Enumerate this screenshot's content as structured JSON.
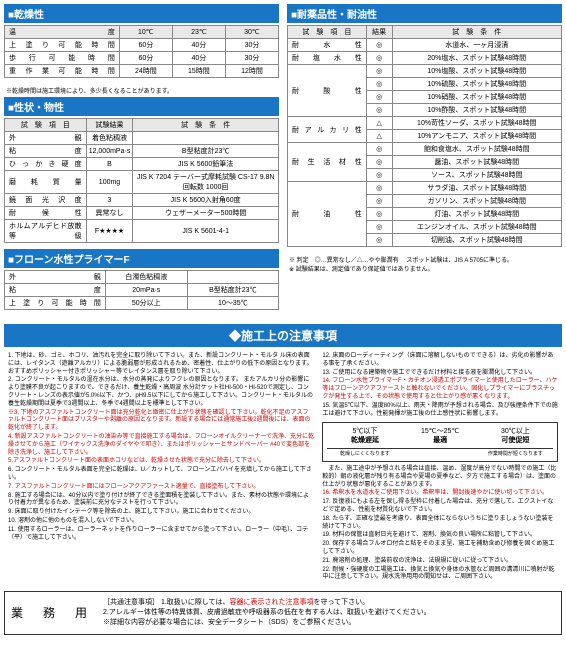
{
  "sections": {
    "drying": {
      "title": "■乾燥性",
      "headers": [
        "温　　　　度",
        "10℃",
        "23℃",
        "30℃"
      ],
      "rows": [
        [
          "上塗り可能時間",
          "60分",
          "40分",
          "30分"
        ],
        [
          "歩行可能時間",
          "60分",
          "40分",
          "30分"
        ],
        [
          "重作業可能時間",
          "24時間",
          "15時間",
          "12時間"
        ]
      ],
      "note": "※乾燥時間は施工環境により、多少長くなることがあります。"
    },
    "properties": {
      "title": "■性状・物性",
      "headers": [
        "試　験　項　目",
        "試験結果",
        "試　験　条　件"
      ],
      "rows": [
        [
          "外　　　　　観",
          "着色粘稠液",
          ""
        ],
        [
          "粘　　　　　度",
          "12,000mPa·s",
          "B型粘度計23℃"
        ],
        [
          "ひっかき硬度",
          "B",
          "JIS K 5600鉛筆法"
        ],
        [
          "磨　耗　質　量",
          "100mg",
          "JIS K 7204 テーバー式摩耗試験 CS-17 9.8N 回転数 1000回"
        ],
        [
          "鏡面光沢度",
          "3",
          "JIS K 5600入射角60度"
        ],
        [
          "耐　候　性",
          "異常なし",
          "ウェザーメーター500時間"
        ],
        [
          "ホルムアルデヒド放散等級",
          "F★★★★",
          "JIS K 5601-4-1"
        ]
      ]
    },
    "primer": {
      "title": "■フローン水性プライマーF",
      "rows": [
        [
          "外　　　　　観",
          "白濁色粘稠液",
          ""
        ],
        [
          "粘　　　　　度",
          "20mPa·s",
          "B型粘度計23℃"
        ],
        [
          "上塗り可能時間",
          "50分以上",
          "10～35℃"
        ]
      ]
    },
    "resistance": {
      "title": "■耐薬品性・耐油性",
      "headers": [
        "試　験　項　目",
        "結果",
        "試　験　条　件"
      ],
      "groups": [
        {
          "label": "耐　水　性",
          "rows": [
            [
              "◎",
              "水道水、一ヶ月浸漬"
            ]
          ]
        },
        {
          "label": "耐　塩　水　性",
          "rows": [
            [
              "◎",
              "20%塩水、スポット試験48時間"
            ]
          ]
        },
        {
          "label": "耐　酸　性",
          "rows": [
            [
              "◎",
              "10%塩酸、スポット試験48時間"
            ],
            [
              "◎",
              "10%硫酸、スポット試験48時間"
            ],
            [
              "◎",
              "10%硝酸、スポット試験48時間"
            ],
            [
              "◎",
              "10%酢酸、スポット試験48時間"
            ]
          ]
        },
        {
          "label": "耐アルカリ性",
          "rows": [
            [
              "△",
              "10%苛性ソーダ、スポット試験48時間"
            ],
            [
              "△",
              "10%アンモニア、スポット試験48時間"
            ]
          ]
        },
        {
          "label": "耐生活材性",
          "rows": [
            [
              "◎",
              "飽和食塩水、スポット試験48時間"
            ],
            [
              "◎",
              "醤油、スポット試験48時間"
            ],
            [
              "◎",
              "ソース、スポット試験48時間"
            ]
          ]
        },
        {
          "label": "耐　油　性",
          "rows": [
            [
              "◎",
              "サラダ油、スポット試験48時間"
            ],
            [
              "◎",
              "ガソリン、スポット試験48時間"
            ],
            [
              "◎",
              "灯油、スポット試験48時間"
            ],
            [
              "◎",
              "エンジンオイル、スポット試験48時間"
            ],
            [
              "◎",
              "切削油、スポット試験48時間"
            ]
          ]
        }
      ],
      "note": "※ 判定　◎…異常なし／△…やや膨潤有　 スポット試験は、JIS A 5705に準じる。\n※ 試験結果は、測定値であり保証値ではありません。"
    }
  },
  "notice": {
    "title": "◆施工上の注意事項",
    "left_items": [
      "1. 下地は、砂、ゴミ、ホコリ、油汚れを完全に取り除いて下さい。また、新設コンクリート・モルタ ル床の表面には、レイタンス（遊離アルカリ）による脆弱層が形成されるため、密着性、仕上がりの低下の原因となります。おすすめポリッシャー付きポリッシャー等でレイタンス層を取り除いて下さい。",
      "2. コンクリート・モルタルの湿在水分は、水分の蒸発によりフクレの原因となります。 またアルカリ分の影響により塗膜不良が起こりますので、できるだけ、養生乾燥・高周波 水分計ケット社HI-500・HI-520で測定し、コンクリート・レンズの表示値が5.0%以下、かつ、pH9.5以下にしてから施工して下さい。コンクリート・モルタルの養生乾燥期間は夏季で3週間以上、冬季で4週間以上を標準として下さい。",
      {
        "text": "※3. 下地のアスファルトコンクリート面は充分乾化と緻密に仕上がり状態を確認して下さい。乾化不足のアスファルトコンクリート面はブリスターや剥離の原因となります。新設する場合には通常施工後2週間後には、表面の乾化が終了します。",
        "red": true
      },
      {
        "text": "4. 新設アスファルトコンクリートの油染み等で直接施工する場合は、フローンオイルクリーナーで洗浄、充分に乾燥させてから施工（ワイナックス洗浄のダイヤやで叩き）、またはポリッシャーとサンドペーパー #40で変色部を除き洗浄し、施工して下さい。",
        "red": true
      },
      {
        "text": "5.アスファルトコンクリート面の表面ホコリなどは、乾燥させた状態で充分に除去して下さい。",
        "red": true
      },
      "6. コンクリート・モルタル表面を完全に乾燥は、U／カットして、フローンエバハイを充填してから施工して下さい。",
      {
        "text": "7. アスファルトコンクリート面にはフローンアクアファースト適量で、直接塗布して下さい。",
        "red": true
      },
      "8. 施工する場合には、40分以内で塗り付けが終了できる塗面積を塗装して下さい。また、素材の状態や環境により付着力が異なるため、塗装前に充分なテストを行って下さい。",
      "9. 床面に取り付けたインテーク等を除去の上、施工して下さい。施工に合わせてください。",
      "10. 溶剤の他に他のものを混入しないで下さい。",
      "11. 使用するローラーは、ローラーネットを作りローラーに含ませてから塗って下さい。ローラー（中毛）、コテ（平）で施工して下さい。"
    ],
    "right_items": [
      "12. 床面のローディーティング（床面に溶解しないものでできる）は、劣化の影響がある事を了承ください。",
      "13. ご使用になる建築物や施工でできるだけ材料と接る液を膨潤化して下さい。",
      {
        "text": "14. フローン水性プライマーF・カチオン浸透エポプライマーと使用したローラー、ハケ等はフローンアクアファーストと触れないでください。固化しプライマーにブラスチックが発生する上で、その状態で使用すると仕上がり感が悪くなります。",
        "red": true
      },
      "15. 気温5℃以下、温度80%以上、雨天・降雨が予想される場合、及び強煙条件下での施工は避けて下さい。性能発揮が施工後の仕上感性状に影響します。"
    ],
    "temp_table": [
      {
        "range": "5℃以下",
        "status": "乾燥遅延",
        "note": "乾燥しにくくなります"
      },
      {
        "range": "15℃～25℃",
        "status": "最適",
        "note": ""
      },
      {
        "range": "30℃以上",
        "status": "可使促短",
        "note": "作業時間が短くなります"
      }
    ],
    "right_items2": [
      "　また、施工途中が予想される場合は直接、温め、湿度が高分でない時間での施工（比較的）朝の液化層が残り有る場合や夏場の夏季など、夕方で施工する場合）は、塗面の仕上がり状態が悪化することがあります。",
      {
        "text": "16. 希釈水を水道水をご使用下さい。希釈率は、開封後速やかに使い切って下さい。",
        "red": true
      },
      "17. 反復液にもよる左を保し得る型枠に付着した場合は、充分で落して、エクストイなどで定める、性能を材質化ないで下さい。",
      "18. たらす、正確な塗最を考慮り、表面全体にならないうちに塗りましょうない塗装を続けて下さい。",
      "19. 材料の保管は直射日光を避けて、溶剤、換気の良い場所に粘管して下さい。",
      "20. 保存する場合フルオロ付合と粘をそのまま呈、施工を補助含めび修養を固くめ施工して下さい。",
      "21. 廃溶剤の処理、塗装前収の洗浄は、法規規に従いに従って下さい。",
      "22. 耐候・強硬度の工場施工は、換気と換気や身体の水管など周囲の溝清川に噴射が乾中に注意して下さい。規水洗浄用用の間知せは、ご周囲下さい。"
    ]
  },
  "bottom": {
    "label": "業　務　用",
    "lines": [
      "［共通注意事項］ 1.取扱いに際しては、容器に表示された注意事項を守って下さい。",
      "2.アレルギー体性等の特異体質、皮膚過敏症や呼吸器系の低在を有する人は、取扱いを避けてください。",
      "※詳細な内容が必要な場合には、安全データシート（SDS）をご参照ください。"
    ]
  }
}
